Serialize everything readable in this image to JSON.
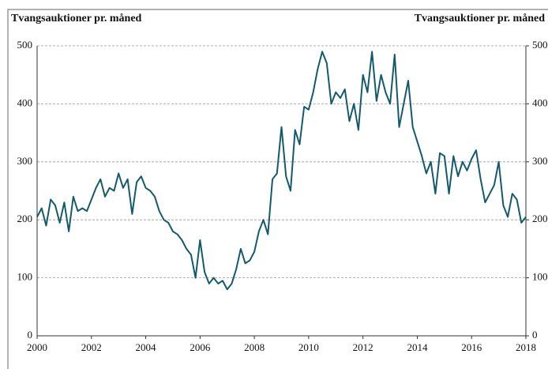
{
  "chart_data": {
    "type": "line",
    "y_label": "Tvangsauktioner pr. måned",
    "y2_label": "Tvangsauktioner pr. måned",
    "x": [
      2000,
      2000.167,
      2000.333,
      2000.5,
      2000.667,
      2000.833,
      2001,
      2001.167,
      2001.333,
      2001.5,
      2001.667,
      2001.833,
      2002,
      2002.167,
      2002.333,
      2002.5,
      2002.667,
      2002.833,
      2003,
      2003.167,
      2003.333,
      2003.5,
      2003.667,
      2003.833,
      2004,
      2004.167,
      2004.333,
      2004.5,
      2004.667,
      2004.833,
      2005,
      2005.167,
      2005.333,
      2005.5,
      2005.667,
      2005.833,
      2006,
      2006.167,
      2006.333,
      2006.5,
      2006.667,
      2006.833,
      2007,
      2007.167,
      2007.333,
      2007.5,
      2007.667,
      2007.833,
      2008,
      2008.167,
      2008.333,
      2008.5,
      2008.667,
      2008.833,
      2009,
      2009.167,
      2009.333,
      2009.5,
      2009.667,
      2009.833,
      2010,
      2010.167,
      2010.333,
      2010.5,
      2010.667,
      2010.833,
      2011,
      2011.167,
      2011.333,
      2011.5,
      2011.667,
      2011.833,
      2012,
      2012.167,
      2012.333,
      2012.5,
      2012.667,
      2012.833,
      2013,
      2013.167,
      2013.333,
      2013.5,
      2013.667,
      2013.833,
      2014,
      2014.167,
      2014.333,
      2014.5,
      2014.667,
      2014.833,
      2015,
      2015.167,
      2015.333,
      2015.5,
      2015.667,
      2015.833,
      2016,
      2016.167,
      2016.333,
      2016.5,
      2016.667,
      2016.833,
      2017,
      2017.167,
      2017.333,
      2017.5,
      2017.667,
      2017.833,
      2018
    ],
    "series": [
      {
        "color": "#155a6c",
        "values": [
          205,
          220,
          190,
          235,
          225,
          195,
          230,
          180,
          240,
          215,
          220,
          215,
          235,
          255,
          270,
          240,
          255,
          250,
          280,
          255,
          270,
          210,
          265,
          275,
          255,
          250,
          240,
          215,
          200,
          195,
          180,
          175,
          165,
          150,
          140,
          100,
          165,
          110,
          90,
          100,
          90,
          95,
          80,
          90,
          115,
          150,
          125,
          130,
          145,
          180,
          200,
          175,
          270,
          280,
          360,
          275,
          250,
          355,
          330,
          395,
          390,
          420,
          460,
          490,
          470,
          400,
          420,
          410,
          425,
          370,
          400,
          355,
          450,
          420,
          490,
          405,
          450,
          420,
          400,
          485,
          360,
          400,
          440,
          360,
          335,
          310,
          280,
          300,
          245,
          315,
          310,
          245,
          310,
          275,
          300,
          285,
          305,
          320,
          270,
          230,
          245,
          260,
          300,
          225,
          205,
          245,
          235,
          195,
          205
        ]
      }
    ],
    "xlim": [
      2000,
      2018
    ],
    "xticks": [
      2000,
      2002,
      2004,
      2006,
      2008,
      2010,
      2012,
      2014,
      2016,
      2018
    ],
    "ylim": [
      0,
      500
    ],
    "yticks": [
      0,
      100,
      200,
      300,
      400,
      500
    ],
    "y2lim": [
      0,
      500
    ],
    "y2ticks": [
      0,
      100,
      200,
      300,
      400,
      500
    ],
    "grid": true
  }
}
